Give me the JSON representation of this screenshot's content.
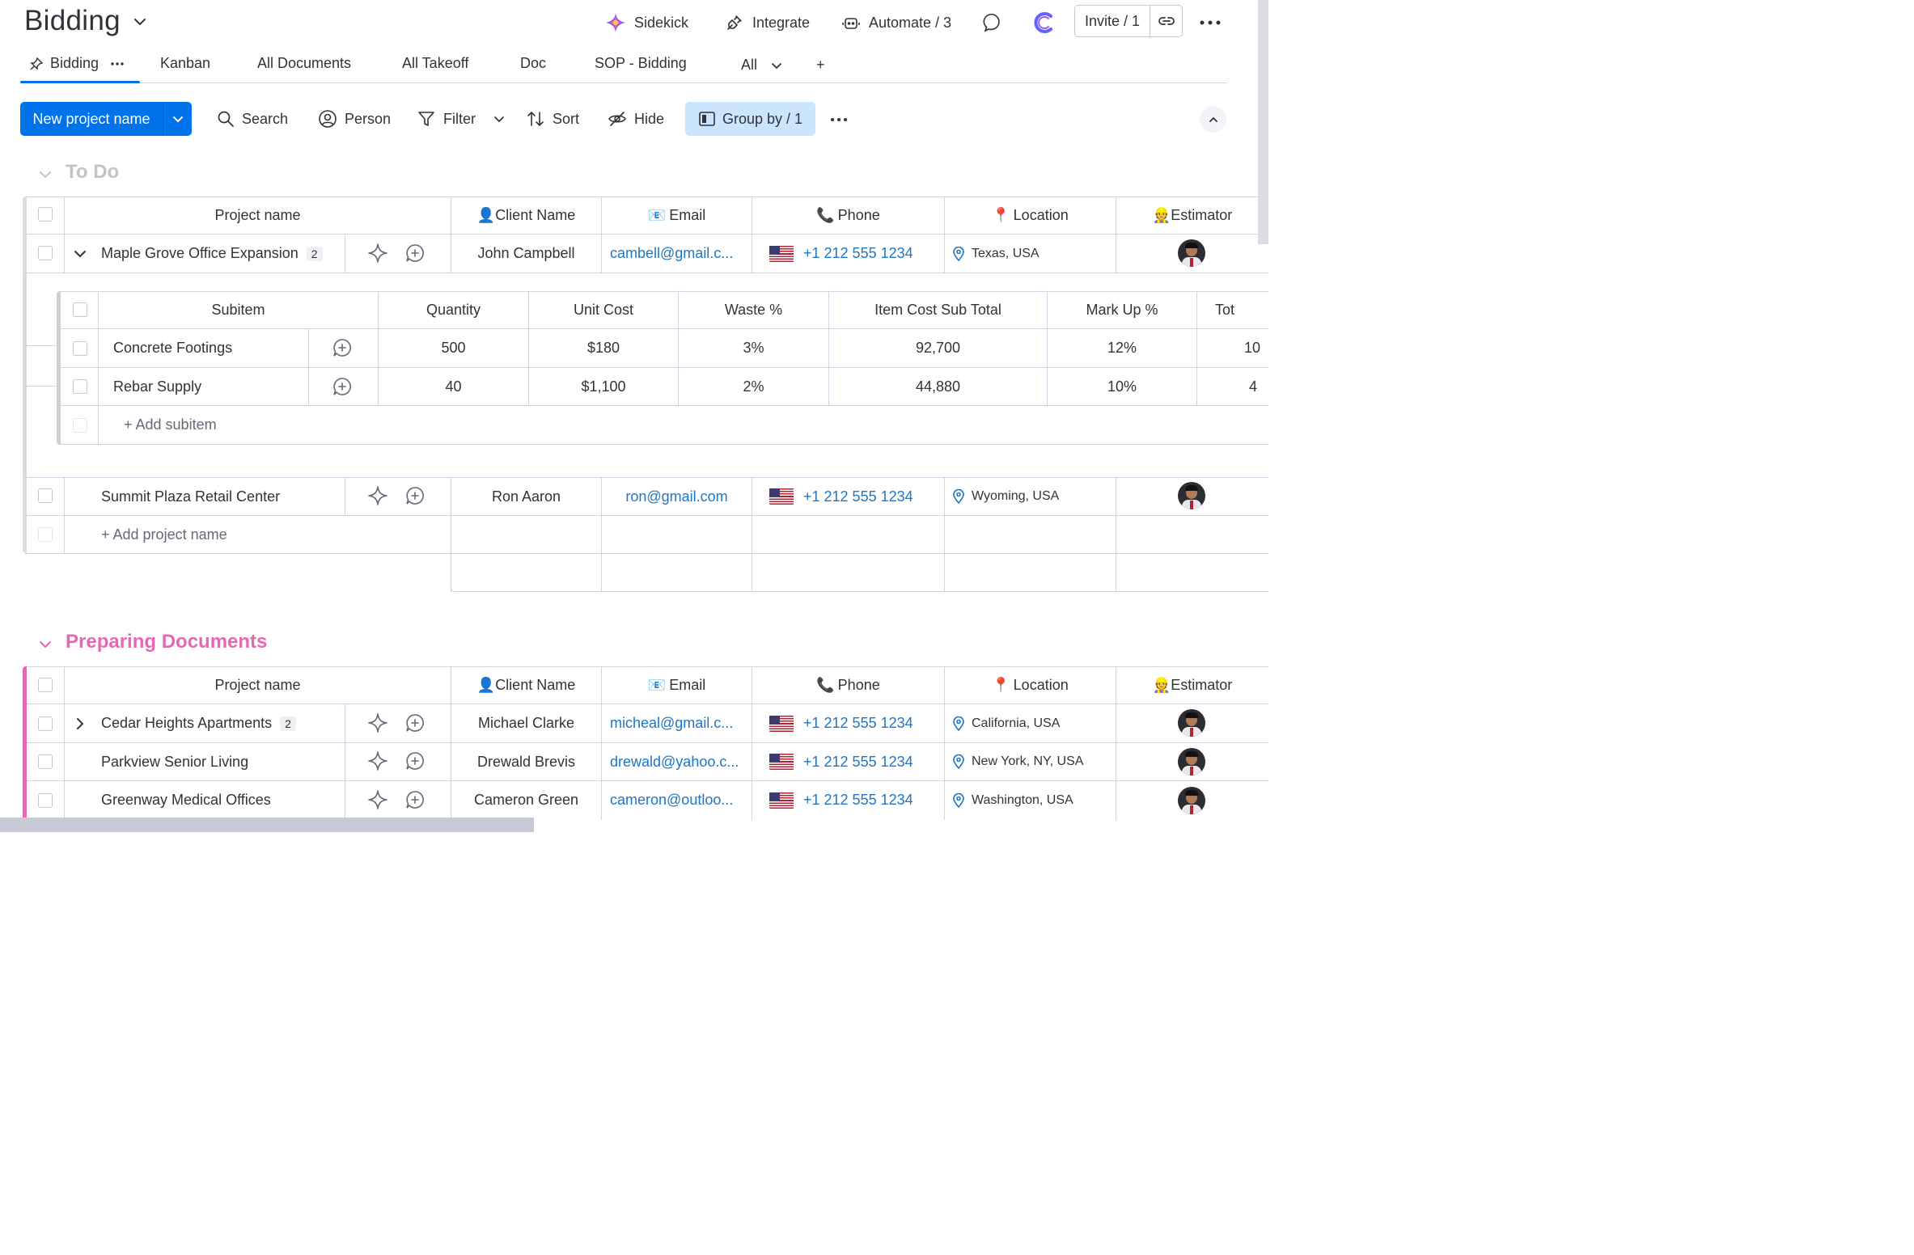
{
  "header": {
    "board_title": "Bidding",
    "sidekick": "Sidekick",
    "integrate": "Integrate",
    "automate": "Automate / 3",
    "invite": "Invite / 1"
  },
  "tabs": [
    {
      "label": "Bidding"
    },
    {
      "label": "Kanban"
    },
    {
      "label": "All Documents"
    },
    {
      "label": "All Takeoff"
    },
    {
      "label": "Doc"
    },
    {
      "label": "SOP - Bidding"
    },
    {
      "label": "All"
    },
    {
      "label": "+"
    }
  ],
  "toolbar": {
    "new_item": "New project name",
    "search": "Search",
    "person": "Person",
    "filter": "Filter",
    "sort": "Sort",
    "hide": "Hide",
    "group_by": "Group by / 1"
  },
  "columns": {
    "project_name": "Project name",
    "client": "Client Name",
    "email": "Email",
    "phone": "Phone",
    "location": "Location",
    "estimator": "Estimator"
  },
  "column_emoji": {
    "client": "👤",
    "email": "📧",
    "phone": "📞",
    "location": "📍",
    "estimator": "👷"
  },
  "groups": [
    {
      "title": "To Do",
      "color": "#c4c4c4",
      "rows": [
        {
          "name": "Maple Grove Office Expansion",
          "subitems": "2",
          "client": "John Campbell",
          "email": "cambell@gmail.c...",
          "phone": "+1 212 555 1234",
          "location": "Texas, USA"
        },
        {
          "name": "Summit Plaza Retail Center",
          "client": "Ron Aaron",
          "email": "ron@gmail.com",
          "phone": "+1 212 555 1234",
          "location": "Wyoming, USA"
        }
      ],
      "add_label": "+ Add project name"
    },
    {
      "title": "Preparing Documents",
      "color": "#e2445c",
      "rows": [
        {
          "name": "Cedar Heights Apartments",
          "subitems": "2",
          "client": "Michael Clarke",
          "email": "micheal@gmail.c...",
          "phone": "+1 212 555 1234",
          "location": "California, USA"
        },
        {
          "name": "Parkview Senior Living",
          "client": "Drewald Brevis",
          "email": "drewald@yahoo.c...",
          "phone": "+1 212 555 1234",
          "location": "New York, NY, USA"
        },
        {
          "name": "Greenway Medical Offices",
          "client": "Cameron Green",
          "email": "cameron@outloo...",
          "phone": "+1 212 555 1234",
          "location": "Washington, USA"
        }
      ]
    }
  ],
  "subtable": {
    "columns": [
      "Subitem",
      "Quantity",
      "Unit Cost",
      "Waste %",
      "Item Cost Sub Total",
      "Mark Up %",
      "Tot"
    ],
    "rows": [
      [
        "Concrete Footings",
        "500",
        "$180",
        "3%",
        "92,700",
        "12%",
        "10"
      ],
      [
        "Rebar Supply",
        "40",
        "$1,100",
        "2%",
        "44,880",
        "10%",
        "4"
      ]
    ],
    "add_label": "+ Add subitem"
  },
  "colors": {
    "accent": "#0073ea",
    "group_by_bg": "#cce5ff",
    "preparing_group": "#e2445c",
    "todo_group": "#c4c4c4",
    "link": "#1f76c2"
  }
}
